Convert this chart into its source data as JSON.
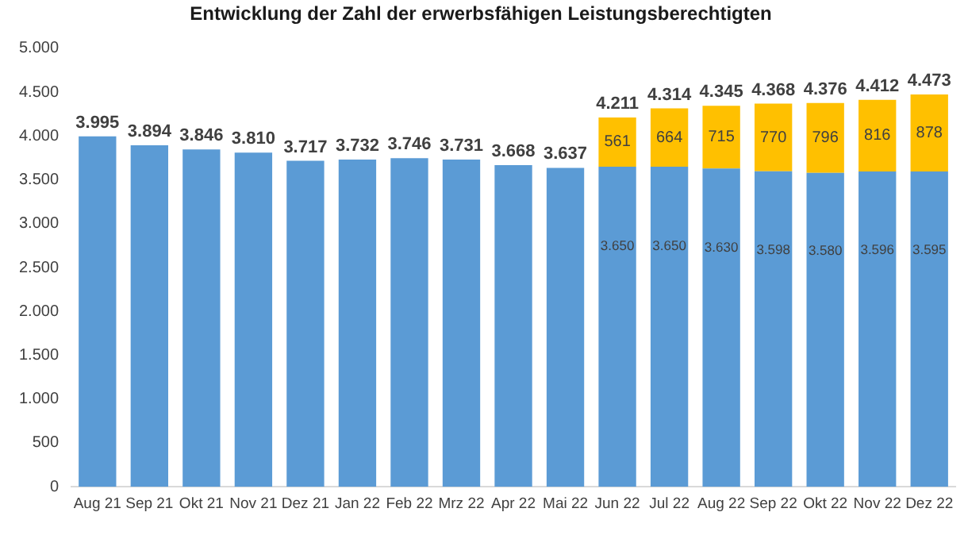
{
  "chart_data": {
    "type": "bar",
    "title": "Entwicklung der Zahl der erwerbsfähigen Leistungsberechtigten",
    "stacked": true,
    "categories": [
      "Aug 21",
      "Sep 21",
      "Okt 21",
      "Nov 21",
      "Dez 21",
      "Jan 22",
      "Feb 22",
      "Mrz 22",
      "Apr 22",
      "Mai 22",
      "Jun 22",
      "Jul 22",
      "Aug 22",
      "Sep 22",
      "Okt 22",
      "Nov 22",
      "Dez 22"
    ],
    "series": [
      {
        "color": "#5b9bd5",
        "values": [
          3995,
          3894,
          3846,
          3810,
          3717,
          3732,
          3746,
          3731,
          3668,
          3637,
          3650,
          3650,
          3630,
          3598,
          3580,
          3596,
          3595
        ],
        "value_labels": [
          "3.995",
          "3.894",
          "3.846",
          "3.810",
          "3.717",
          "3.732",
          "3.746",
          "3.731",
          "3.668",
          "3.637",
          "3.650",
          "3.650",
          "3.630",
          "3.598",
          "3.580",
          "3.596",
          "3.595"
        ]
      },
      {
        "color": "#ffc000",
        "values": [
          null,
          null,
          null,
          null,
          null,
          null,
          null,
          null,
          null,
          null,
          561,
          664,
          715,
          770,
          796,
          816,
          878
        ],
        "value_labels": [
          null,
          null,
          null,
          null,
          null,
          null,
          null,
          null,
          null,
          null,
          "561",
          "664",
          "715",
          "770",
          "796",
          "816",
          "878"
        ]
      }
    ],
    "totals": [
      null,
      null,
      null,
      null,
      null,
      null,
      null,
      null,
      null,
      null,
      "4.211",
      "4.314",
      "4.345",
      "4.368",
      "4.376",
      "4.412",
      "4.473"
    ],
    "ylim": [
      0,
      5000
    ],
    "yticks": [
      {
        "value": 0,
        "label": "0"
      },
      {
        "value": 500,
        "label": "500"
      },
      {
        "value": 1000,
        "label": "1.000"
      },
      {
        "value": 1500,
        "label": "1.500"
      },
      {
        "value": 2000,
        "label": "2.000"
      },
      {
        "value": 2500,
        "label": "2.500"
      },
      {
        "value": 3000,
        "label": "3.000"
      },
      {
        "value": 3500,
        "label": "3.500"
      },
      {
        "value": 4000,
        "label": "4.000"
      },
      {
        "value": 4500,
        "label": "4.500"
      },
      {
        "value": 5000,
        "label": "5.000"
      }
    ],
    "grid": false,
    "legend": false
  }
}
